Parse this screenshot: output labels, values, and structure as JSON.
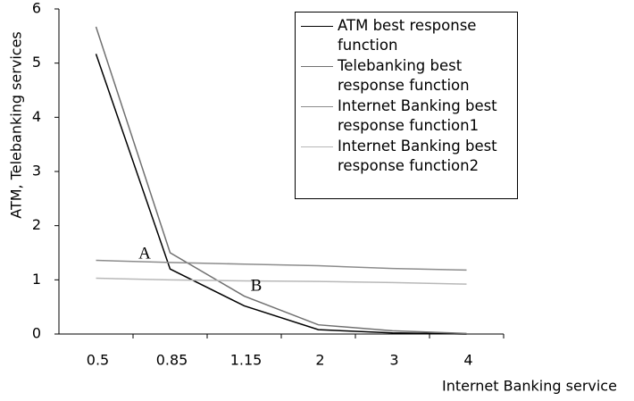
{
  "chart_data": {
    "type": "line",
    "xlabel": "Internet Banking service",
    "ylabel": "ATM, Telebanking services",
    "categories": [
      "0.5",
      "0.85",
      "1.15",
      "2",
      "3",
      "4"
    ],
    "series": [
      {
        "name": "ATM best response function",
        "color": "#000000",
        "values": [
          5.17,
          1.2,
          0.52,
          0.08,
          0.02,
          0.0
        ]
      },
      {
        "name": "Telebanking best response function",
        "color": "#707070",
        "values": [
          5.67,
          1.5,
          0.7,
          0.17,
          0.06,
          0.01
        ]
      },
      {
        "name": "Internet Banking best response function1",
        "color": "#8c8c8c",
        "values": [
          1.36,
          1.32,
          1.29,
          1.26,
          1.21,
          1.18
        ]
      },
      {
        "name": "Internet Banking best response function2",
        "color": "#b8b8b8",
        "values": [
          1.03,
          1.0,
          0.98,
          0.97,
          0.95,
          0.92
        ]
      }
    ],
    "annotations": [
      "A",
      "B"
    ],
    "ylim": [
      0,
      6
    ],
    "yticks": [
      0,
      1,
      2,
      3,
      4,
      5,
      6
    ],
    "grid": false,
    "legend": "upper right"
  }
}
